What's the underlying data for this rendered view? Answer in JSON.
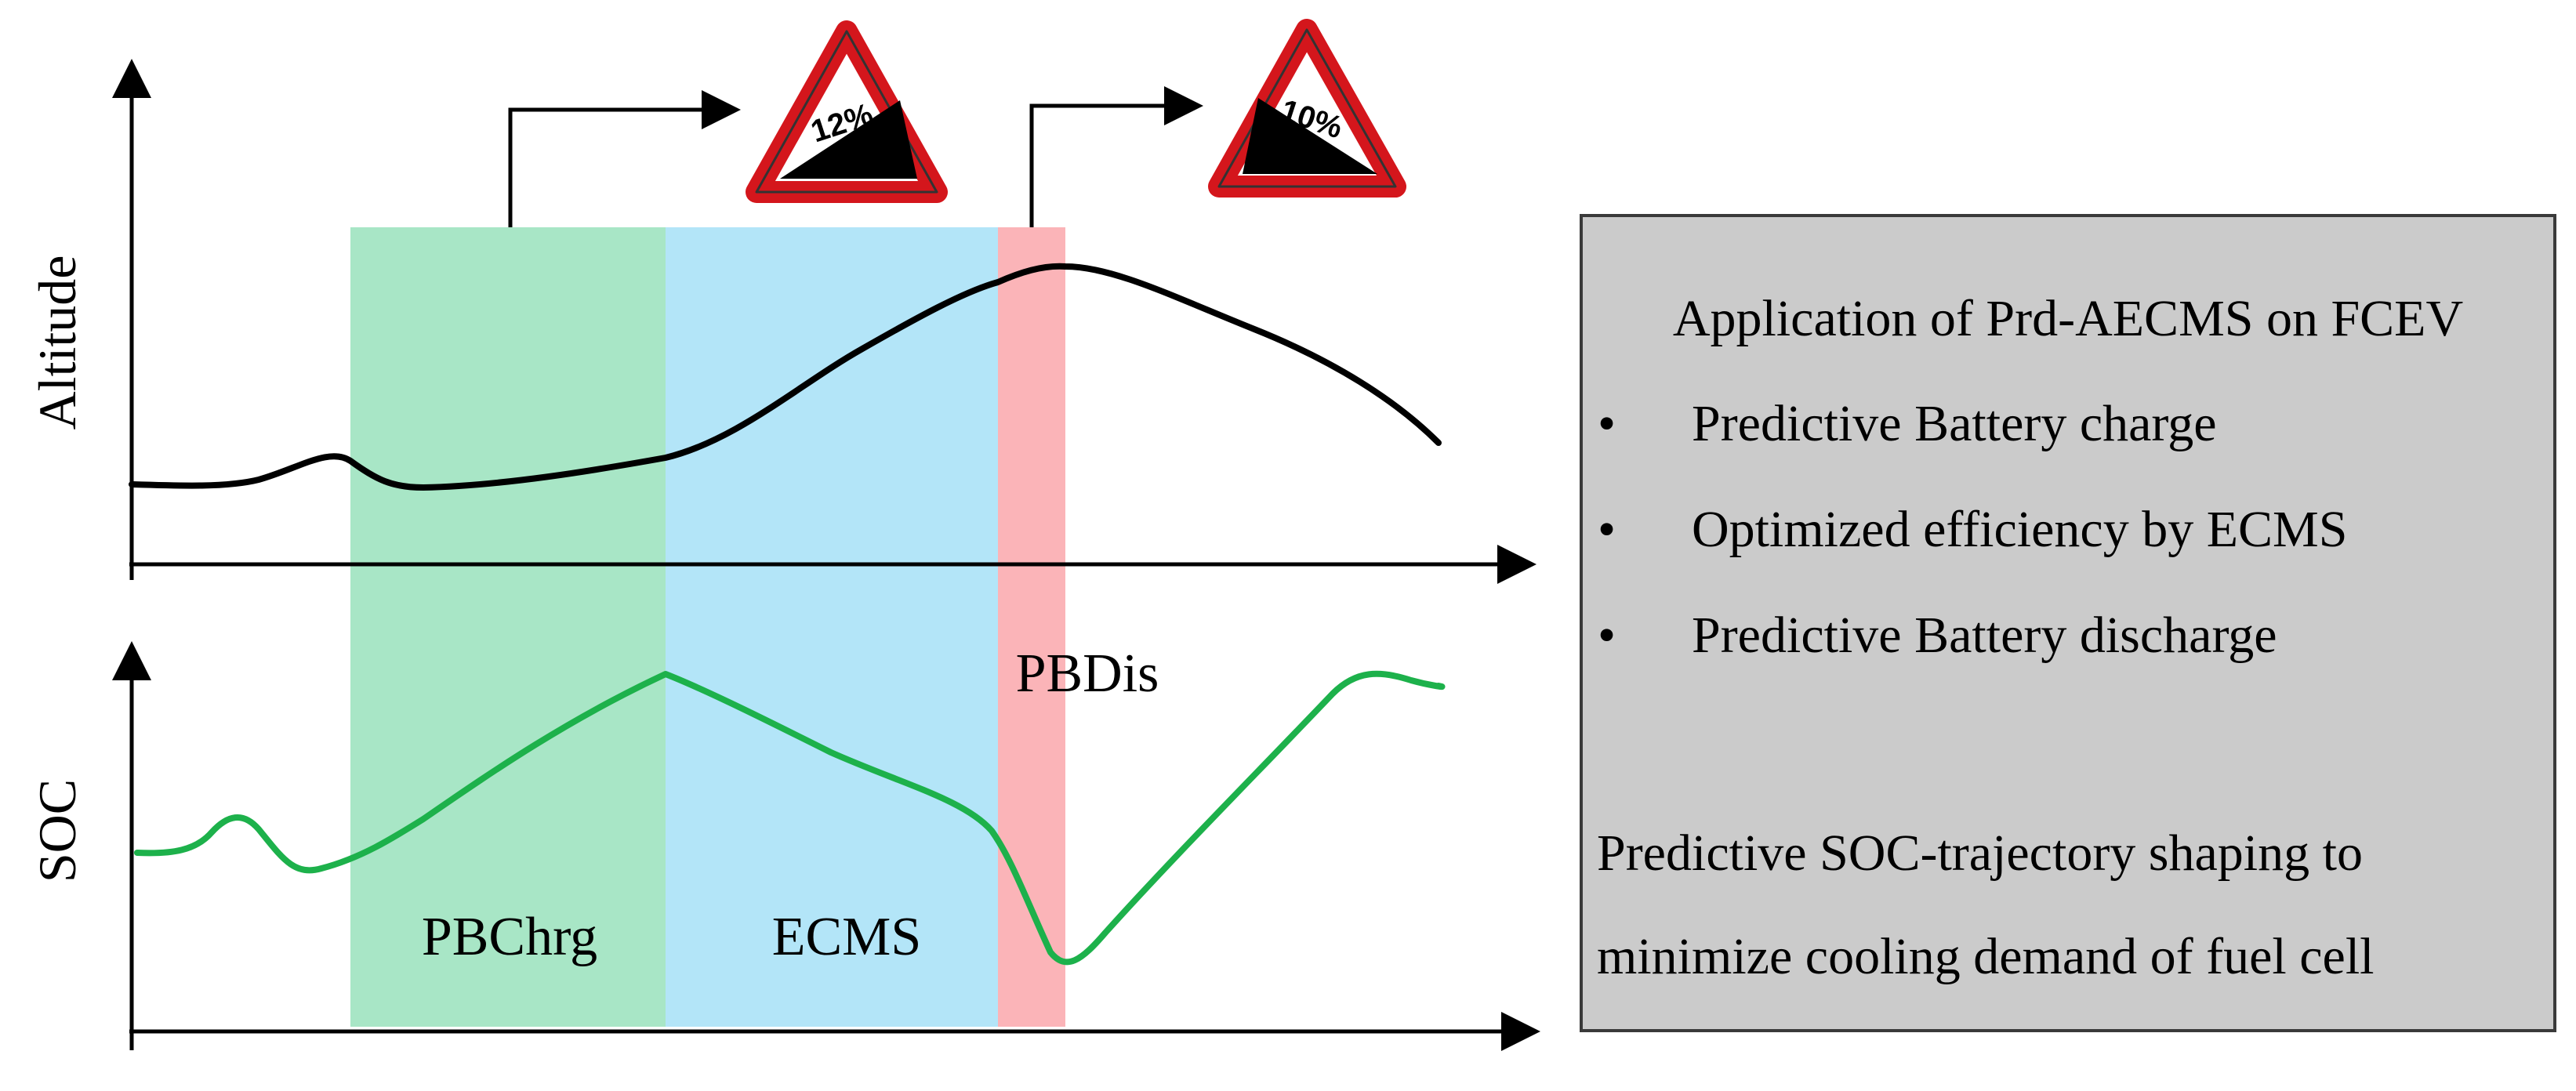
{
  "diagram": {
    "top_axis_label": "Altitude",
    "bottom_axis_label": "SOC",
    "bands": {
      "charge": {
        "label": "PBChrg",
        "color": "#a8e6c6"
      },
      "ecms": {
        "label": "ECMS",
        "color": "#b3e5f8"
      },
      "discharge": {
        "label": "PBDis",
        "color": "#fbb4b8"
      }
    },
    "signs": [
      {
        "grade": "12%",
        "icon": "uphill-grade-warning-sign-icon"
      },
      {
        "grade": "10%",
        "icon": "downhill-grade-warning-sign-icon"
      }
    ],
    "colors": {
      "altitude_curve": "#000000",
      "soc_curve": "#1db14b",
      "panel_bg": "#cbcbcb",
      "sign_border": "#d4161c"
    }
  },
  "info_panel": {
    "title": "Application of Prd-AECMS on FCEV",
    "bullet_char": "•",
    "bullets": [
      "Predictive Battery charge",
      "Optimized efficiency by ECMS",
      "Predictive Battery discharge"
    ],
    "summary_line1": "Predictive SOC-trajectory shaping to",
    "summary_line2": "minimize cooling demand of fuel cell"
  }
}
